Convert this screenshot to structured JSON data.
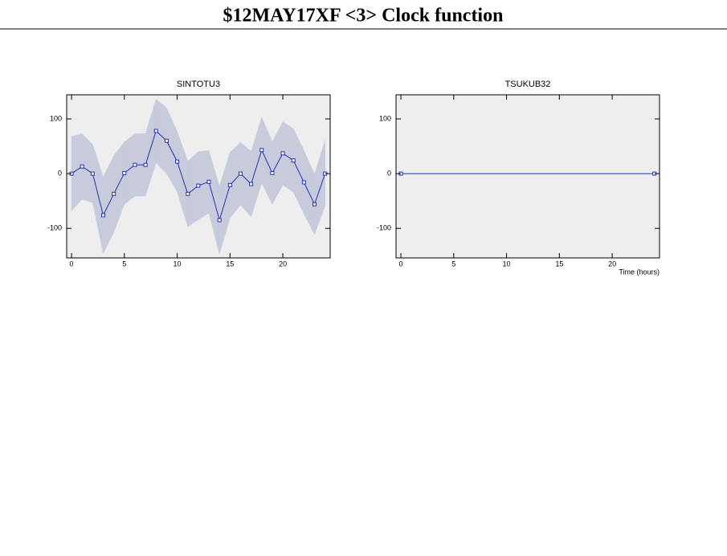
{
  "title": "$12MAY17XF <3>  Clock function",
  "chart_data": [
    {
      "type": "line",
      "title": "SINTOTU3",
      "x": [
        0,
        1,
        2,
        3,
        4,
        5,
        6,
        7,
        8,
        9,
        10,
        11,
        12,
        13,
        14,
        15,
        16,
        17,
        18,
        19,
        20,
        21,
        22,
        23,
        24
      ],
      "series": [
        {
          "color": "#2233aa",
          "band_color": "#c8cbdc",
          "values": [
            0,
            13,
            0,
            -76,
            -37,
            1,
            16,
            16,
            78,
            60,
            22,
            -37,
            -22,
            -15,
            -85,
            -21,
            0,
            -19,
            43,
            1,
            37,
            24,
            -16,
            -56,
            0
          ],
          "errors": [
            68,
            60,
            53,
            70,
            70,
            57,
            57,
            57,
            58,
            60,
            55,
            60,
            62,
            57,
            62,
            60,
            57,
            60,
            60,
            57,
            58,
            58,
            58,
            55,
            60
          ]
        }
      ],
      "xlim": [
        -0.46,
        24.48
      ],
      "ylim": [
        -154,
        144
      ],
      "xticks": [
        0,
        5,
        10,
        15,
        20
      ],
      "yticks": [
        -100,
        0,
        100
      ]
    },
    {
      "type": "line",
      "title": "TSUKUB32",
      "xlabel": "Time (hours)",
      "x": [
        0,
        24
      ],
      "series": [
        {
          "color": "#2233aa",
          "values": [
            0,
            0
          ]
        }
      ],
      "xlim": [
        -0.46,
        24.48
      ],
      "ylim": [
        -154,
        144
      ],
      "xticks": [
        0,
        5,
        10,
        15,
        20
      ],
      "yticks": [
        -100,
        0,
        100
      ]
    }
  ]
}
